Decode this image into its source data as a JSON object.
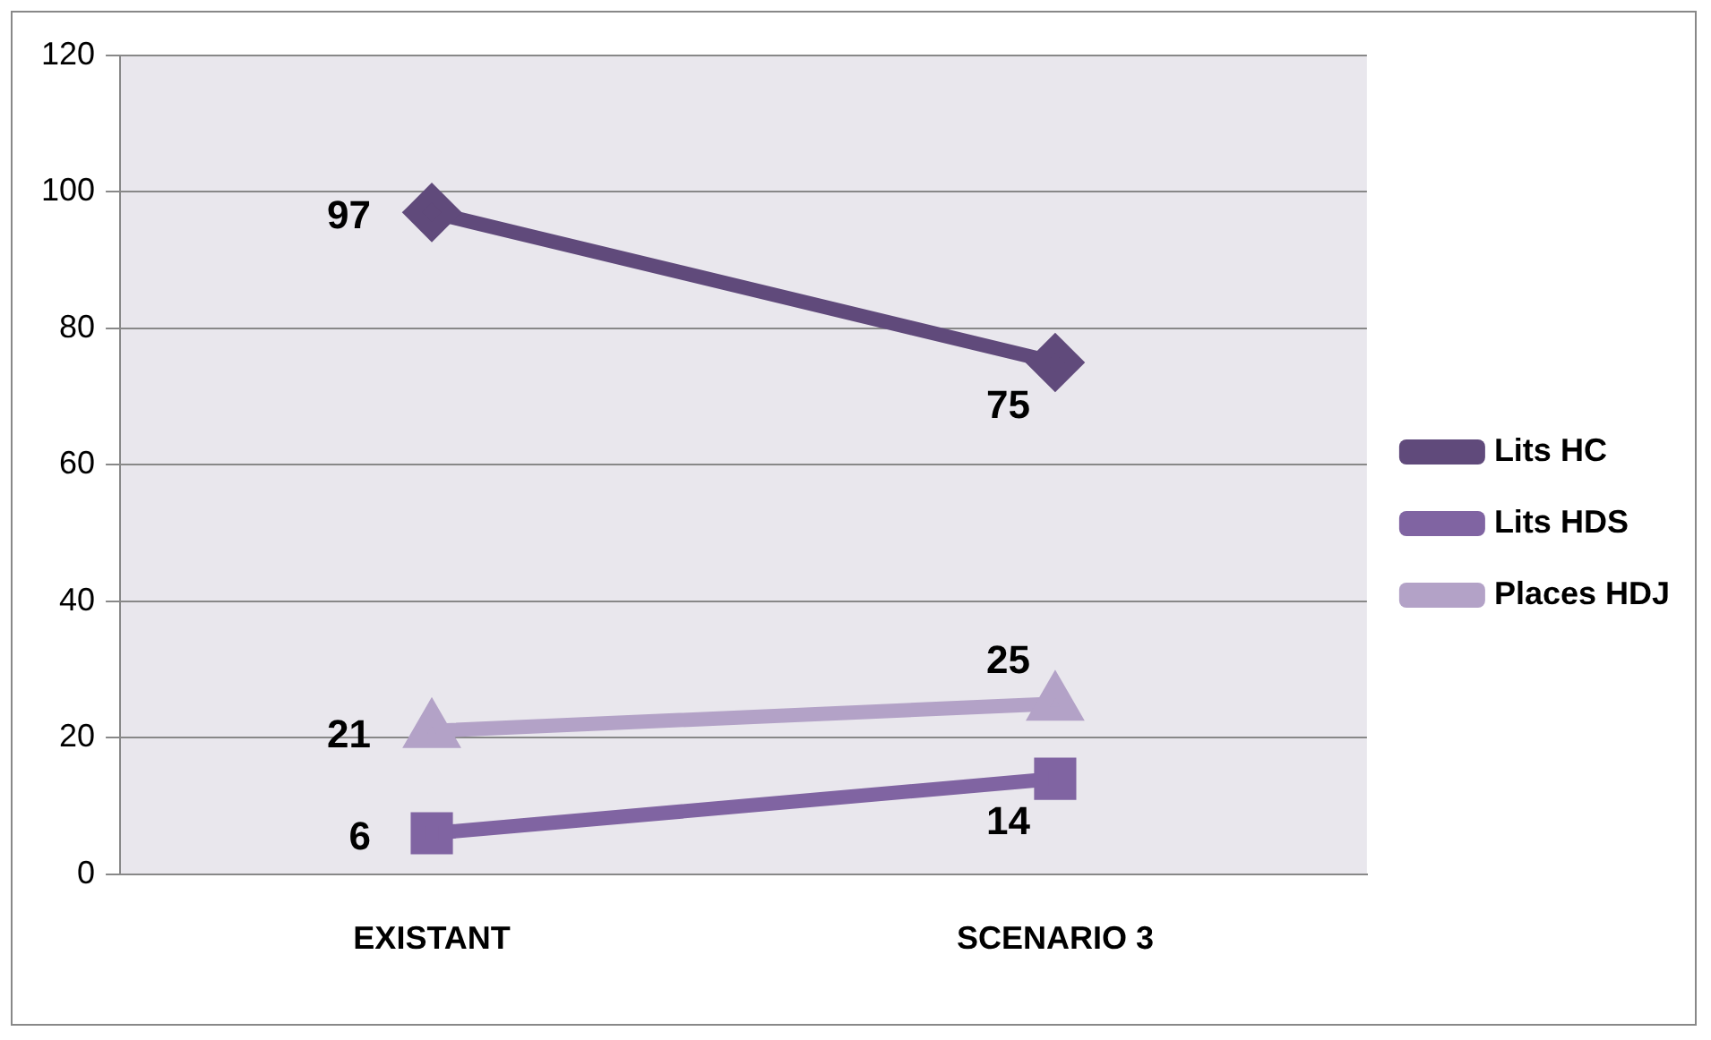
{
  "chart_data": {
    "type": "line",
    "categories": [
      "EXISTANT",
      "SCENARIO 3"
    ],
    "series": [
      {
        "name": "Lits HC",
        "color": "#604a7b",
        "values": [
          97,
          75
        ],
        "marker": "diamond"
      },
      {
        "name": "Lits HDS",
        "color": "#8064a2",
        "values": [
          6,
          14
        ],
        "marker": "square"
      },
      {
        "name": "Places HDJ",
        "color": "#b3a2c7",
        "values": [
          21,
          25
        ],
        "marker": "triangle"
      }
    ],
    "ylim": [
      0,
      120
    ],
    "yticks": [
      0,
      20,
      40,
      60,
      80,
      100,
      120
    ],
    "grid": "y",
    "legend": "right",
    "data_labels": true
  }
}
